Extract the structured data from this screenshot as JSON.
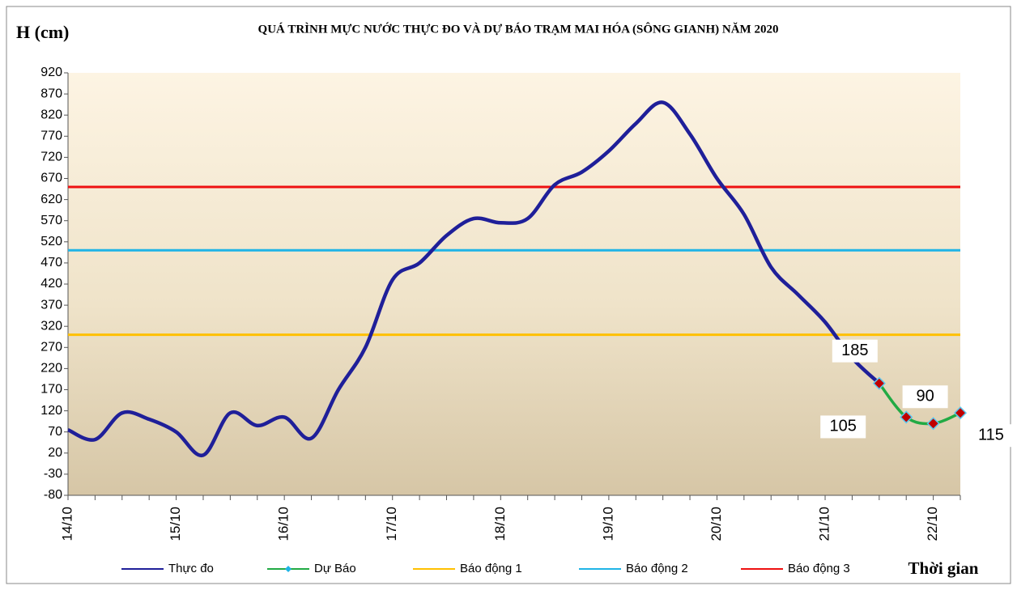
{
  "chart_data": {
    "type": "line",
    "title": "QUÁ TRÌNH MỰC NƯỚC THỰC ĐO VÀ DỰ BÁO TRẠM MAI HÓA (SÔNG GIANH) NĂM 2020",
    "y_label": "H (cm)",
    "x_label": "Thời gian",
    "categories": [
      "14/10",
      null,
      null,
      null,
      "15/10",
      null,
      null,
      null,
      "16/10",
      null,
      null,
      null,
      "17/10",
      null,
      null,
      null,
      "18/10",
      null,
      null,
      null,
      "19/10",
      null,
      null,
      null,
      "20/10",
      null,
      null,
      null,
      "21/10",
      null,
      null,
      null,
      "22/10",
      null
    ],
    "ylim": [
      -80,
      920
    ],
    "yticks": [
      -80,
      -30,
      20,
      70,
      120,
      170,
      220,
      270,
      320,
      370,
      420,
      470,
      520,
      570,
      620,
      670,
      720,
      770,
      820,
      870,
      920
    ],
    "series": [
      {
        "name": "Thực đo",
        "color": "#1f1f99",
        "values": [
          75,
          52,
          115,
          100,
          70,
          15,
          115,
          85,
          105,
          55,
          170,
          270,
          430,
          470,
          535,
          575,
          565,
          575,
          655,
          685,
          735,
          800,
          850,
          775,
          670,
          585,
          460,
          395,
          330,
          245,
          185,
          null,
          null,
          null
        ]
      },
      {
        "name": "Dự Báo",
        "color": "#22aa44",
        "marker_color": "#c00000",
        "values": [
          null,
          null,
          null,
          null,
          null,
          null,
          null,
          null,
          null,
          null,
          null,
          null,
          null,
          null,
          null,
          null,
          null,
          null,
          null,
          null,
          null,
          null,
          null,
          null,
          null,
          null,
          null,
          null,
          null,
          null,
          185,
          105,
          90,
          115
        ]
      },
      {
        "name": "Báo động 1",
        "color": "#ffc000",
        "values": [
          300,
          300,
          300,
          300,
          300,
          300,
          300,
          300,
          300,
          300,
          300,
          300,
          300,
          300,
          300,
          300,
          300,
          300,
          300,
          300,
          300,
          300,
          300,
          300,
          300,
          300,
          300,
          300,
          300,
          300,
          300,
          300,
          300,
          300
        ]
      },
      {
        "name": "Báo động 2",
        "color": "#1fb4e6",
        "values": [
          500,
          500,
          500,
          500,
          500,
          500,
          500,
          500,
          500,
          500,
          500,
          500,
          500,
          500,
          500,
          500,
          500,
          500,
          500,
          500,
          500,
          500,
          500,
          500,
          500,
          500,
          500,
          500,
          500,
          500,
          500,
          500,
          500,
          500
        ]
      },
      {
        "name": "Báo động 3",
        "color": "#ee1111",
        "values": [
          650,
          650,
          650,
          650,
          650,
          650,
          650,
          650,
          650,
          650,
          650,
          650,
          650,
          650,
          650,
          650,
          650,
          650,
          650,
          650,
          650,
          650,
          650,
          650,
          650,
          650,
          650,
          650,
          650,
          650,
          650,
          650,
          650,
          650
        ]
      }
    ]
  }
}
